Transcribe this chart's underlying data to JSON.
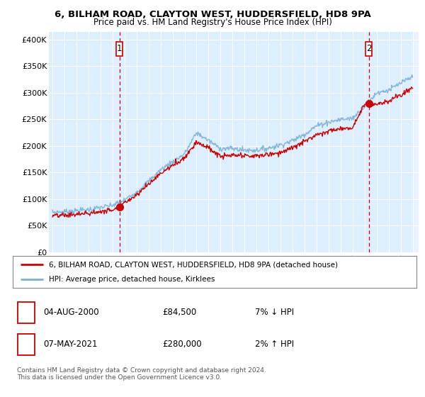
{
  "title": "6, BILHAM ROAD, CLAYTON WEST, HUDDERSFIELD, HD8 9PA",
  "subtitle": "Price paid vs. HM Land Registry's House Price Index (HPI)",
  "ylabel_ticks": [
    "£0",
    "£50K",
    "£100K",
    "£150K",
    "£200K",
    "£250K",
    "£300K",
    "£350K",
    "£400K"
  ],
  "ytick_values": [
    0,
    50000,
    100000,
    150000,
    200000,
    250000,
    300000,
    350000,
    400000
  ],
  "ylim": [
    0,
    415000
  ],
  "xlim_start": 1994.7,
  "xlim_end": 2025.5,
  "sale1_x": 2000.58,
  "sale1_y": 84500,
  "sale2_x": 2021.35,
  "sale2_y": 280000,
  "sale1_label": "04-AUG-2000",
  "sale1_price": "£84,500",
  "sale1_hpi": "7% ↓ HPI",
  "sale2_label": "07-MAY-2021",
  "sale2_price": "£280,000",
  "sale2_hpi": "2% ↑ HPI",
  "red_color": "#cc0000",
  "blue_color": "#7ab0d4",
  "bg_color": "#ddeeff",
  "legend_line1": "6, BILHAM ROAD, CLAYTON WEST, HUDDERSFIELD, HD8 9PA (detached house)",
  "legend_line2": "HPI: Average price, detached house, Kirklees",
  "footnote": "Contains HM Land Registry data © Crown copyright and database right 2024.\nThis data is licensed under the Open Government Licence v3.0.",
  "hpi_knots_x": [
    1995,
    1996,
    1997,
    1998,
    1999,
    2000,
    2001,
    2002,
    2003,
    2004,
    2005,
    2006,
    2007,
    2008,
    2009,
    2010,
    2011,
    2012,
    2013,
    2014,
    2015,
    2016,
    2017,
    2018,
    2019,
    2020,
    2021,
    2022,
    2023,
    2024,
    2025
  ],
  "hpi_knots_y": [
    75000,
    76000,
    78000,
    80000,
    84000,
    88000,
    98000,
    113000,
    133000,
    155000,
    170000,
    185000,
    225000,
    210000,
    195000,
    195000,
    192000,
    192000,
    196000,
    202000,
    210000,
    222000,
    238000,
    245000,
    250000,
    252000,
    275000,
    300000,
    305000,
    318000,
    330000
  ],
  "red_knots_x": [
    1995,
    1996,
    1997,
    1998,
    1999,
    2000,
    2001,
    2002,
    2003,
    2004,
    2005,
    2006,
    2007,
    2008,
    2009,
    2010,
    2011,
    2012,
    2013,
    2014,
    2015,
    2016,
    2017,
    2018,
    2019,
    2020,
    2021,
    2022,
    2023,
    2024,
    2025
  ],
  "red_knots_y": [
    68000,
    69000,
    71000,
    73000,
    76000,
    80000,
    93000,
    108000,
    128000,
    148000,
    163000,
    178000,
    208000,
    196000,
    180000,
    182000,
    181000,
    181000,
    184000,
    188000,
    196000,
    208000,
    222000,
    228000,
    232000,
    235000,
    280000,
    278000,
    285000,
    295000,
    310000
  ]
}
